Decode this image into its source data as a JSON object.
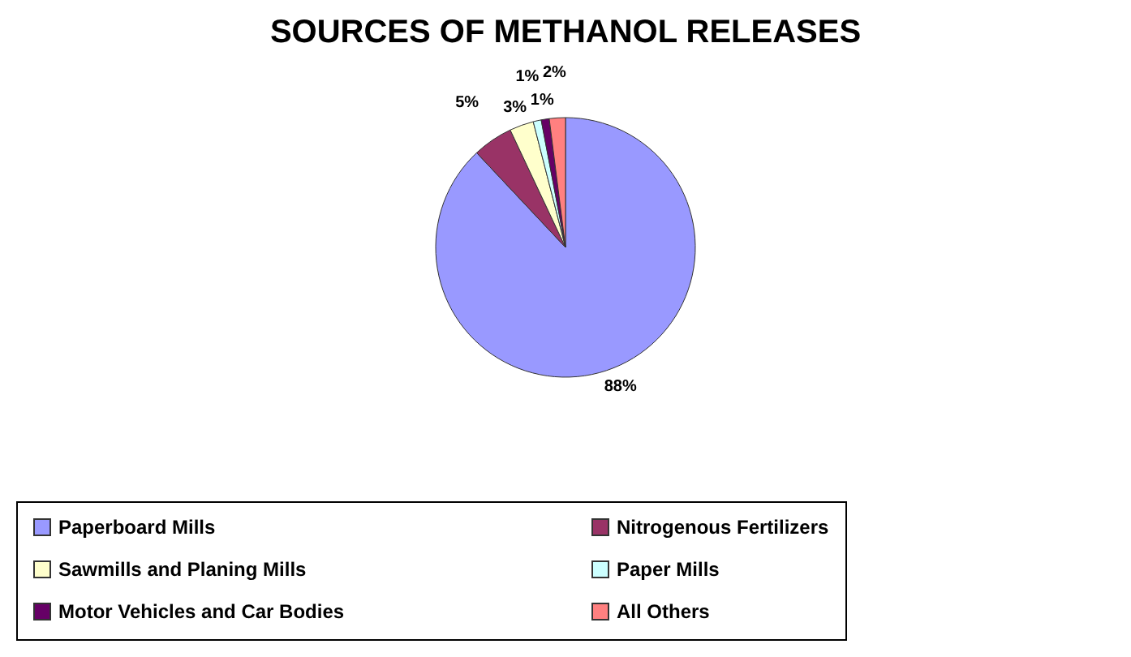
{
  "chart_data": {
    "type": "pie",
    "title": "SOURCES OF METHANOL RELEASES",
    "categories": [
      "Paperboard Mills",
      "Nitrogenous Fertilizers",
      "Sawmills and Planing Mills",
      "Paper Mills",
      "Motor Vehicles and Car Bodies",
      "All Others"
    ],
    "values": [
      88,
      5,
      3,
      1,
      1,
      2
    ],
    "value_labels": [
      "88%",
      "5%",
      "3%",
      "1%",
      "1%",
      "2%"
    ],
    "colors": [
      "#9999ff",
      "#993366",
      "#ffffcc",
      "#ccffff",
      "#660066",
      "#ff8080"
    ],
    "legend": "bottom"
  }
}
